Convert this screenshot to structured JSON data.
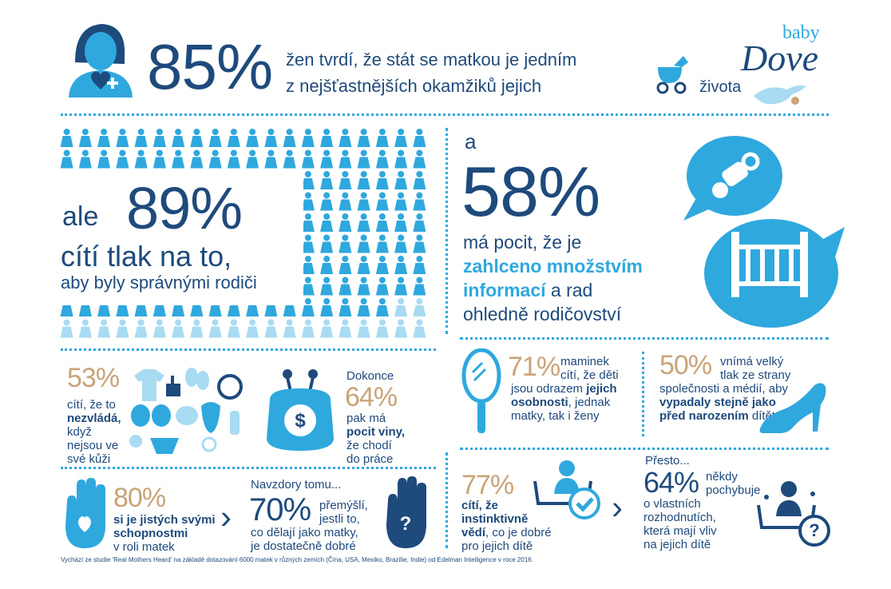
{
  "brand": {
    "logo_small": "baby",
    "logo_big": "Dove"
  },
  "top": {
    "percent": "85%",
    "line1": "žen tvrdí, že stát se matkou je jedním",
    "line2": "z nejšťastnějších okamžiků jejich",
    "line3": "života"
  },
  "stat89": {
    "prefix": "ale",
    "percent": "89%",
    "line1": "cítí tlak na to,",
    "line2": "aby byly správnými rodiči",
    "figures_total": 156,
    "figures_highlight_fraction": 0.89
  },
  "stat58": {
    "prefix": "a",
    "percent": "58%",
    "line1": "má pocit, že je",
    "line2_bold": "zahlceno množstvím",
    "line3_bold": "informací",
    "line3_rest": " a rad",
    "line4": "ohledně rodičovství"
  },
  "stat53": {
    "percent": "53%",
    "line1": "cítí, že to",
    "line2_bold": "nezvládá,",
    "line3": "když",
    "line4": "nejsou ve",
    "line5": "své kůži"
  },
  "stat64a": {
    "intro": "Dokonce",
    "percent": "64%",
    "line1": "pak má",
    "line2_bold": "pocit viny,",
    "line3": "že chodí",
    "line4": "do práce",
    "coin_symbol": "$"
  },
  "stat71": {
    "percent": "71%",
    "line1": "maminek",
    "line2": "cítí, že děti",
    "line3": "jsou odrazem",
    "line3_bold": "jejich",
    "line4_bold": "osobnosti",
    "line4_rest": ", jednak",
    "line5": "matky, tak i ženy"
  },
  "stat50": {
    "percent": "50%",
    "line1": "vnímá velký",
    "line2": "tlak ze strany",
    "line3": "společnosti a médií, aby",
    "line4_bold": "vypadaly stejně jako",
    "line5_bold": "před narozením",
    "line5_rest": " dítěte"
  },
  "stat80": {
    "percent": "80%",
    "line1_bold": "si je jistých svými",
    "line2_bold": "schopnostmi",
    "line3": "v roli matek"
  },
  "stat70": {
    "intro": "Navzdory tomu...",
    "percent": "70%",
    "line1": "přemýšlí,",
    "line2": "jestli to,",
    "line3": "co dělají jako matky,",
    "line4": "je dostatečně dobré"
  },
  "stat77": {
    "percent": "77%",
    "line1_bold": "cítí, že",
    "line2_bold": "instinktivně",
    "line3_bold": "vědí",
    "line3_rest": ", co je dobré",
    "line4": "pro jejich dítě"
  },
  "stat64b": {
    "intro": "Přesto...",
    "percent": "64%",
    "line1": "někdy",
    "line2": "pochybuje",
    "line3": "o vlastních",
    "line4": "rozhodnutích,",
    "line5": "která mají vliv",
    "line6": "na jejich dítě"
  },
  "footer": {
    "source": "Vychází ze studie 'Real Mothers Heard' na základě dotazování 6000 matek v různých zemích (Čína, USA, Mexiko, Brazílie, Indie) od Edelman Intelligence v roce 2016."
  },
  "colors": {
    "navy": "#1e4a7c",
    "blue": "#2fa8de",
    "light_blue": "#a9dbf3",
    "gold": "#c9a478"
  }
}
